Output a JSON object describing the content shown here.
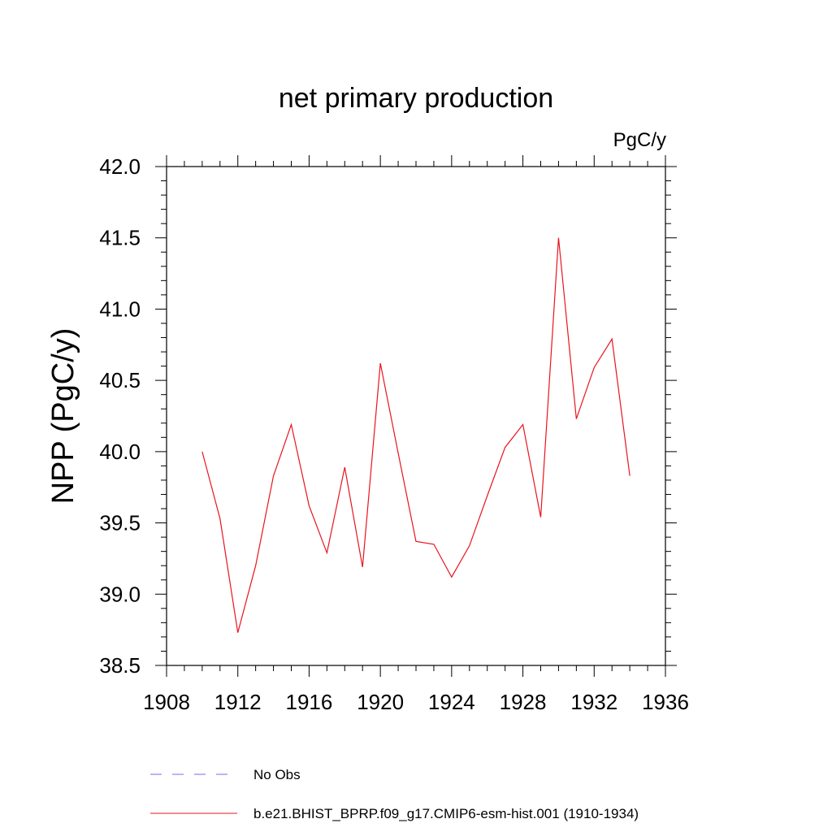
{
  "chart_data": {
    "type": "line",
    "title": "net primary production",
    "units_label": "PgC/y",
    "xlabel": "",
    "ylabel": "NPP  (PgC/y)",
    "xlim": [
      1908,
      1936
    ],
    "ylim": [
      38.5,
      42.0
    ],
    "x_ticks": [
      1908,
      1912,
      1916,
      1920,
      1924,
      1928,
      1932,
      1936
    ],
    "y_ticks": [
      "38.5",
      "39.0",
      "39.5",
      "40.0",
      "40.5",
      "41.0",
      "41.5",
      "42.0"
    ],
    "grid": false,
    "legend_placement": "bottom",
    "series": [
      {
        "name": "b.e21.BHIST_BPRP.f09_g17.CMIP6-esm-hist.001 (1910-1934)",
        "color": "#e8141e",
        "style": "solid",
        "x": [
          1910,
          1911,
          1912,
          1913,
          1914,
          1915,
          1916,
          1917,
          1918,
          1919,
          1920,
          1921,
          1922,
          1923,
          1924,
          1925,
          1926,
          1927,
          1928,
          1929,
          1930,
          1931,
          1932,
          1933,
          1934
        ],
        "y": [
          40.0,
          39.53,
          38.73,
          39.2,
          39.83,
          40.19,
          39.62,
          39.29,
          39.89,
          39.19,
          40.62,
          39.99,
          39.37,
          39.35,
          39.12,
          39.34,
          39.69,
          40.03,
          40.19,
          39.54,
          41.5,
          40.23,
          40.59,
          40.79,
          39.83
        ]
      }
    ],
    "legend": [
      {
        "label": "No Obs",
        "color": "#7b68ee",
        "style": "dashed"
      },
      {
        "label": "b.e21.BHIST_BPRP.f09_g17.CMIP6-esm-hist.001 (1910-1934)",
        "color": "#e8141e",
        "style": "solid"
      }
    ]
  }
}
